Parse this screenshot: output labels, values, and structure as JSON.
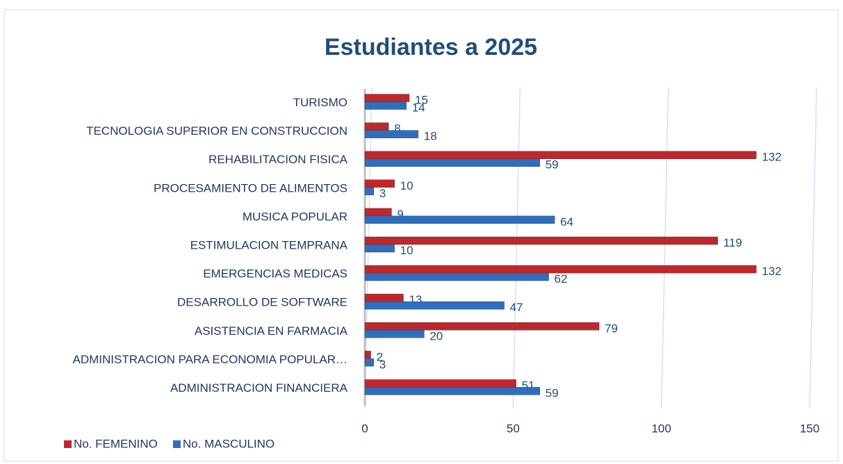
{
  "chart_data": {
    "type": "bar",
    "orientation": "horizontal",
    "title": "Estudiantes a 2025",
    "categories": [
      "ADMINISTRACION FINANCIERA",
      "ADMINISTRACION PARA ECONOMIA POPULAR…",
      "ASISTENCIA EN FARMACIA",
      "DESARROLLO DE SOFTWARE",
      "EMERGENCIAS MEDICAS",
      "ESTIMULACION TEMPRANA",
      "MUSICA POPULAR",
      "PROCESAMIENTO DE ALIMENTOS",
      "REHABILITACION FISICA",
      "TECNOLOGIA SUPERIOR EN CONSTRUCCION",
      "TURISMO"
    ],
    "series": [
      {
        "name": "No. FEMENINO",
        "color": "#c0272d",
        "values": [
          51,
          2,
          79,
          13,
          132,
          119,
          9,
          10,
          132,
          8,
          15
        ]
      },
      {
        "name": "No. MASCULINO",
        "color": "#2f6ebd",
        "values": [
          59,
          3,
          20,
          47,
          62,
          10,
          64,
          3,
          59,
          18,
          14
        ]
      }
    ],
    "xlim": [
      0,
      150
    ],
    "xticks": [
      0,
      50,
      100,
      150
    ],
    "grid": true,
    "legend": "bottom-left"
  }
}
